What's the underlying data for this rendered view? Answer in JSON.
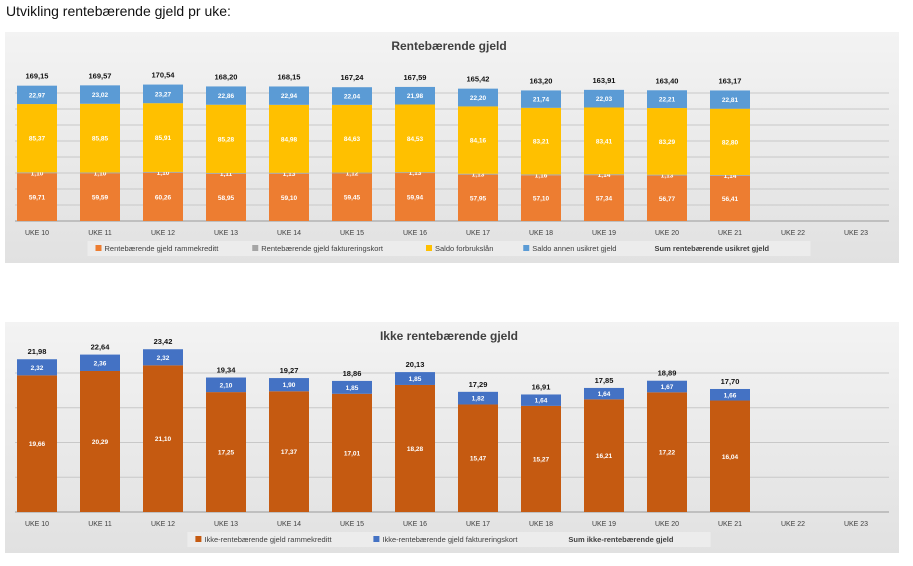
{
  "page": {
    "title": "Utvikling rentebærende gjeld pr uke:"
  },
  "colors": {
    "orange_light": "#ED7D31",
    "gray": "#A5A5A5",
    "yellow": "#FFC000",
    "blue": "#5B9BD5",
    "orange_dark": "#C55A11",
    "blue_dark": "#4472C4"
  },
  "chart_data": [
    {
      "type": "bar",
      "stacked": true,
      "title": "Rentebærende gjeld",
      "categories": [
        "UKE 10",
        "UKE 11",
        "UKE 12",
        "UKE 13",
        "UKE 14",
        "UKE 15",
        "UKE 16",
        "UKE 17",
        "UKE 18",
        "UKE 19",
        "UKE 20",
        "UKE 21",
        "UKE 22",
        "UKE 23"
      ],
      "series": [
        {
          "name": "Rentebærende gjeld rammekreditt",
          "color": "#ED7D31",
          "values": [
            59.71,
            59.59,
            60.26,
            58.95,
            59.1,
            59.45,
            59.94,
            57.95,
            57.1,
            57.34,
            56.77,
            56.41,
            null,
            null
          ],
          "labels": [
            "59,71",
            "59,59",
            "60,26",
            "58,95",
            "59,10",
            "59,45",
            "59,94",
            "57,95",
            "57,10",
            "57,34",
            "56,77",
            "56,41",
            null,
            null
          ]
        },
        {
          "name": "Rentebærende gjeld faktureringskort",
          "color": "#A5A5A5",
          "values": [
            1.1,
            1.1,
            1.1,
            1.11,
            1.13,
            1.12,
            1.13,
            1.13,
            1.16,
            1.14,
            1.13,
            1.14,
            null,
            null
          ],
          "labels": [
            "1,10",
            "1,10",
            "1,10",
            "1,11",
            "1,13",
            "1,12",
            "1,13",
            "1,13",
            "1,16",
            "1,14",
            "1,13",
            "1,14",
            null,
            null
          ]
        },
        {
          "name": "Saldo forbrukslån",
          "color": "#FFC000",
          "values": [
            85.37,
            85.85,
            85.91,
            85.28,
            84.98,
            84.63,
            84.53,
            84.16,
            83.21,
            83.41,
            83.29,
            82.8,
            null,
            null
          ],
          "labels": [
            "85,37",
            "85,85",
            "85,91",
            "85,28",
            "84,98",
            "84,63",
            "84,53",
            "84,16",
            "83,21",
            "83,41",
            "83,29",
            "82,80",
            null,
            null
          ]
        },
        {
          "name": "Saldo annen usikret gjeld",
          "color": "#5B9BD5",
          "values": [
            22.97,
            23.02,
            23.27,
            22.86,
            22.94,
            22.04,
            21.98,
            22.2,
            21.74,
            22.03,
            22.21,
            22.81,
            null,
            null
          ],
          "labels": [
            "22,97",
            "23,02",
            "23,27",
            "22,86",
            "22,94",
            "22,04",
            "21,98",
            "22,20",
            "21,74",
            "22,03",
            "22,21",
            "22,81",
            null,
            null
          ]
        }
      ],
      "totals": {
        "name": "Sum rentebærende usikret gjeld",
        "values": [
          169.15,
          169.57,
          170.54,
          168.2,
          168.15,
          167.24,
          167.59,
          165.42,
          163.2,
          163.91,
          163.4,
          163.17,
          null,
          null
        ],
        "labels": [
          "169,15",
          "169,57",
          "170,54",
          "168,20",
          "168,15",
          "167,24",
          "167,59",
          "165,42",
          "163,20",
          "163,91",
          "163,40",
          "163,17",
          null,
          null
        ]
      },
      "grid": true,
      "legend": "bottom"
    },
    {
      "type": "bar",
      "stacked": true,
      "title": "Ikke rentebærende gjeld",
      "categories": [
        "UKE 10",
        "UKE 11",
        "UKE 12",
        "UKE 13",
        "UKE 14",
        "UKE 15",
        "UKE 16",
        "UKE 17",
        "UKE 18",
        "UKE 19",
        "UKE 20",
        "UKE 21",
        "UKE 22",
        "UKE 23"
      ],
      "series": [
        {
          "name": "Ikke-rentebærende gjeld rammekreditt",
          "color": "#C55A11",
          "values": [
            19.66,
            20.29,
            21.1,
            17.25,
            17.37,
            17.01,
            18.28,
            15.47,
            15.27,
            16.21,
            17.22,
            16.04,
            null,
            null
          ],
          "labels": [
            "19,66",
            "20,29",
            "21,10",
            "17,25",
            "17,37",
            "17,01",
            "18,28",
            "15,47",
            "15,27",
            "16,21",
            "17,22",
            "16,04",
            null,
            null
          ]
        },
        {
          "name": "Ikke-rentebærende gjeld faktureringskort",
          "color": "#4472C4",
          "values": [
            2.32,
            2.36,
            2.32,
            2.1,
            1.9,
            1.85,
            1.85,
            1.82,
            1.64,
            1.64,
            1.67,
            1.66,
            null,
            null
          ],
          "labels": [
            "2,32",
            "2,36",
            "2,32",
            "2,10",
            "1,90",
            "1,85",
            "1,85",
            "1,82",
            "1,64",
            "1,64",
            "1,67",
            "1,66",
            null,
            null
          ]
        }
      ],
      "totals": {
        "name": "Sum ikke-rentebærende gjeld",
        "values": [
          21.98,
          22.64,
          23.42,
          19.34,
          19.27,
          18.86,
          20.13,
          17.29,
          16.91,
          17.85,
          18.89,
          17.7,
          null,
          null
        ],
        "labels": [
          "21,98",
          "22,64",
          "23,42",
          "19,34",
          "19,27",
          "18,86",
          "20,13",
          "17,29",
          "16,91",
          "17,85",
          "18,89",
          "17,70",
          null,
          null
        ]
      },
      "grid": true,
      "legend": "bottom"
    }
  ]
}
